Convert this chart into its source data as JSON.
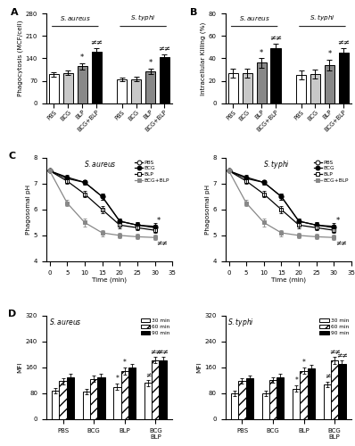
{
  "panel_A": {
    "title": "A",
    "ylabel": "Phagocytosis (MCF/cell)",
    "ylim": [
      0,
      280
    ],
    "yticks": [
      0,
      70,
      140,
      210,
      280
    ],
    "groups": [
      "PBS",
      "BCG",
      "BLP",
      "BCG+BLP"
    ],
    "s_aureus": {
      "means": [
        90,
        95,
        115,
        160
      ],
      "errors": [
        7,
        7,
        9,
        11
      ]
    },
    "s_typhi": {
      "means": [
        75,
        76,
        100,
        143
      ],
      "errors": [
        6,
        6,
        9,
        10
      ]
    },
    "colors_aureus": [
      "white",
      "#c8c8c8",
      "#888888",
      "black"
    ],
    "colors_typhi": [
      "white",
      "#c8c8c8",
      "#888888",
      "black"
    ],
    "annotations_aureus": [
      "",
      "",
      "*",
      "≠≠"
    ],
    "annotations_typhi": [
      "",
      "",
      "*",
      "≠≠"
    ]
  },
  "panel_B": {
    "title": "B",
    "ylabel": "Intracellular Killing (%)",
    "ylim": [
      0,
      80
    ],
    "yticks": [
      0,
      20,
      40,
      60,
      80
    ],
    "groups": [
      "PBS",
      "BCG",
      "BLP",
      "BCG+BLP"
    ],
    "s_aureus": {
      "means": [
        27,
        27,
        36,
        49
      ],
      "errors": [
        4,
        4,
        4,
        4
      ]
    },
    "s_typhi": {
      "means": [
        25,
        26,
        34,
        45
      ],
      "errors": [
        4,
        4,
        5,
        4
      ]
    },
    "colors_aureus": [
      "white",
      "#c8c8c8",
      "#888888",
      "black"
    ],
    "colors_typhi": [
      "white",
      "#c8c8c8",
      "#888888",
      "black"
    ],
    "annotations_aureus": [
      "",
      "",
      "*",
      "≠≠"
    ],
    "annotations_typhi": [
      "",
      "",
      "*",
      "≠≠"
    ]
  },
  "panel_C": {
    "title": "C",
    "ylabel": "Phagosomal pH",
    "xlabel": "Time (min)",
    "ylim": [
      4.0,
      8.0
    ],
    "yticks": [
      4.0,
      5.0,
      6.0,
      7.0,
      8.0
    ],
    "xlim": [
      -1,
      35
    ],
    "xticks": [
      0,
      5,
      10,
      15,
      20,
      25,
      30,
      35
    ],
    "time_points": [
      0,
      5,
      10,
      15,
      20,
      25,
      30
    ],
    "s_aureus": {
      "PBS": {
        "means": [
          7.5,
          7.2,
          7.05,
          6.5,
          5.55,
          5.4,
          5.35
        ],
        "errors": [
          0.05,
          0.08,
          0.1,
          0.12,
          0.1,
          0.12,
          0.12
        ]
      },
      "BCG": {
        "means": [
          7.5,
          7.25,
          7.05,
          6.5,
          5.55,
          5.4,
          5.3
        ],
        "errors": [
          0.05,
          0.08,
          0.1,
          0.12,
          0.1,
          0.12,
          0.12
        ]
      },
      "BLP": {
        "means": [
          7.5,
          7.1,
          6.6,
          6.0,
          5.4,
          5.3,
          5.2
        ],
        "errors": [
          0.05,
          0.1,
          0.12,
          0.15,
          0.12,
          0.1,
          0.1
        ]
      },
      "BCG+BLP": {
        "means": [
          7.5,
          6.25,
          5.5,
          5.1,
          5.0,
          4.95,
          4.92
        ],
        "errors": [
          0.05,
          0.12,
          0.15,
          0.12,
          0.1,
          0.1,
          0.1
        ]
      }
    },
    "s_typhi": {
      "PBS": {
        "means": [
          7.5,
          7.2,
          7.05,
          6.5,
          5.55,
          5.4,
          5.35
        ],
        "errors": [
          0.05,
          0.08,
          0.1,
          0.12,
          0.1,
          0.12,
          0.12
        ]
      },
      "BCG": {
        "means": [
          7.5,
          7.25,
          7.05,
          6.5,
          5.55,
          5.4,
          5.3
        ],
        "errors": [
          0.05,
          0.08,
          0.1,
          0.12,
          0.1,
          0.12,
          0.12
        ]
      },
      "BLP": {
        "means": [
          7.5,
          7.1,
          6.6,
          6.0,
          5.4,
          5.3,
          5.2
        ],
        "errors": [
          0.05,
          0.1,
          0.12,
          0.15,
          0.12,
          0.1,
          0.1
        ]
      },
      "BCG+BLP": {
        "means": [
          7.5,
          6.25,
          5.5,
          5.1,
          5.0,
          4.95,
          4.92
        ],
        "errors": [
          0.05,
          0.12,
          0.15,
          0.12,
          0.1,
          0.1,
          0.1
        ]
      }
    },
    "legend_labels": [
      "PBS",
      "BCG",
      "BLP",
      "BCG+BLP"
    ],
    "markers": [
      "o",
      "o",
      "s",
      "s"
    ],
    "fillstyles": [
      "none",
      "full",
      "none",
      "full"
    ],
    "line_colors": [
      "black",
      "black",
      "black",
      "#888888"
    ]
  },
  "panel_D": {
    "title": "D",
    "ylabel": "MFI",
    "ylim": [
      0,
      320
    ],
    "yticks": [
      0,
      80,
      160,
      240,
      320
    ],
    "groups": [
      "PBS",
      "BCG",
      "BLP",
      "BCG+BLP"
    ],
    "s_aureus": {
      "30min": {
        "means": [
          88,
          85,
          100,
          112
        ],
        "errors": [
          8,
          8,
          9,
          9
        ]
      },
      "60min": {
        "means": [
          118,
          125,
          148,
          183
        ],
        "errors": [
          10,
          10,
          11,
          10
        ]
      },
      "90min": {
        "means": [
          130,
          130,
          160,
          183
        ],
        "errors": [
          10,
          10,
          11,
          10
        ]
      }
    },
    "s_typhi": {
      "30min": {
        "means": [
          80,
          80,
          95,
          108
        ],
        "errors": [
          7,
          7,
          9,
          8
        ]
      },
      "60min": {
        "means": [
          118,
          122,
          150,
          182
        ],
        "errors": [
          9,
          9,
          10,
          10
        ]
      },
      "90min": {
        "means": [
          126,
          130,
          158,
          172
        ],
        "errors": [
          10,
          10,
          10,
          10
        ]
      }
    },
    "annotations_aureus": {
      "BLP_30": "*",
      "BLP_60": "*",
      "BLP_90": "",
      "BCG_30": "",
      "BCG_60": "",
      "BCG_90": "",
      "BCGBLP_30": "≠",
      "BCGBLP_60": "≠≠",
      "BCGBLP_90": "≠≠"
    },
    "annotations_typhi": {
      "BLP_30": "*",
      "BLP_60": "*",
      "BLP_90": "",
      "BCG_30": "",
      "BCG_60": "",
      "BCG_90": "",
      "BCGBLP_30": "≠",
      "BCGBLP_60": "≠≠",
      "BCGBLP_90": "≠≠"
    }
  },
  "global": {
    "bar_edgecolor": "black",
    "bar_linewidth": 0.7,
    "errorbar_capsize": 2,
    "errorbar_linewidth": 0.7
  }
}
